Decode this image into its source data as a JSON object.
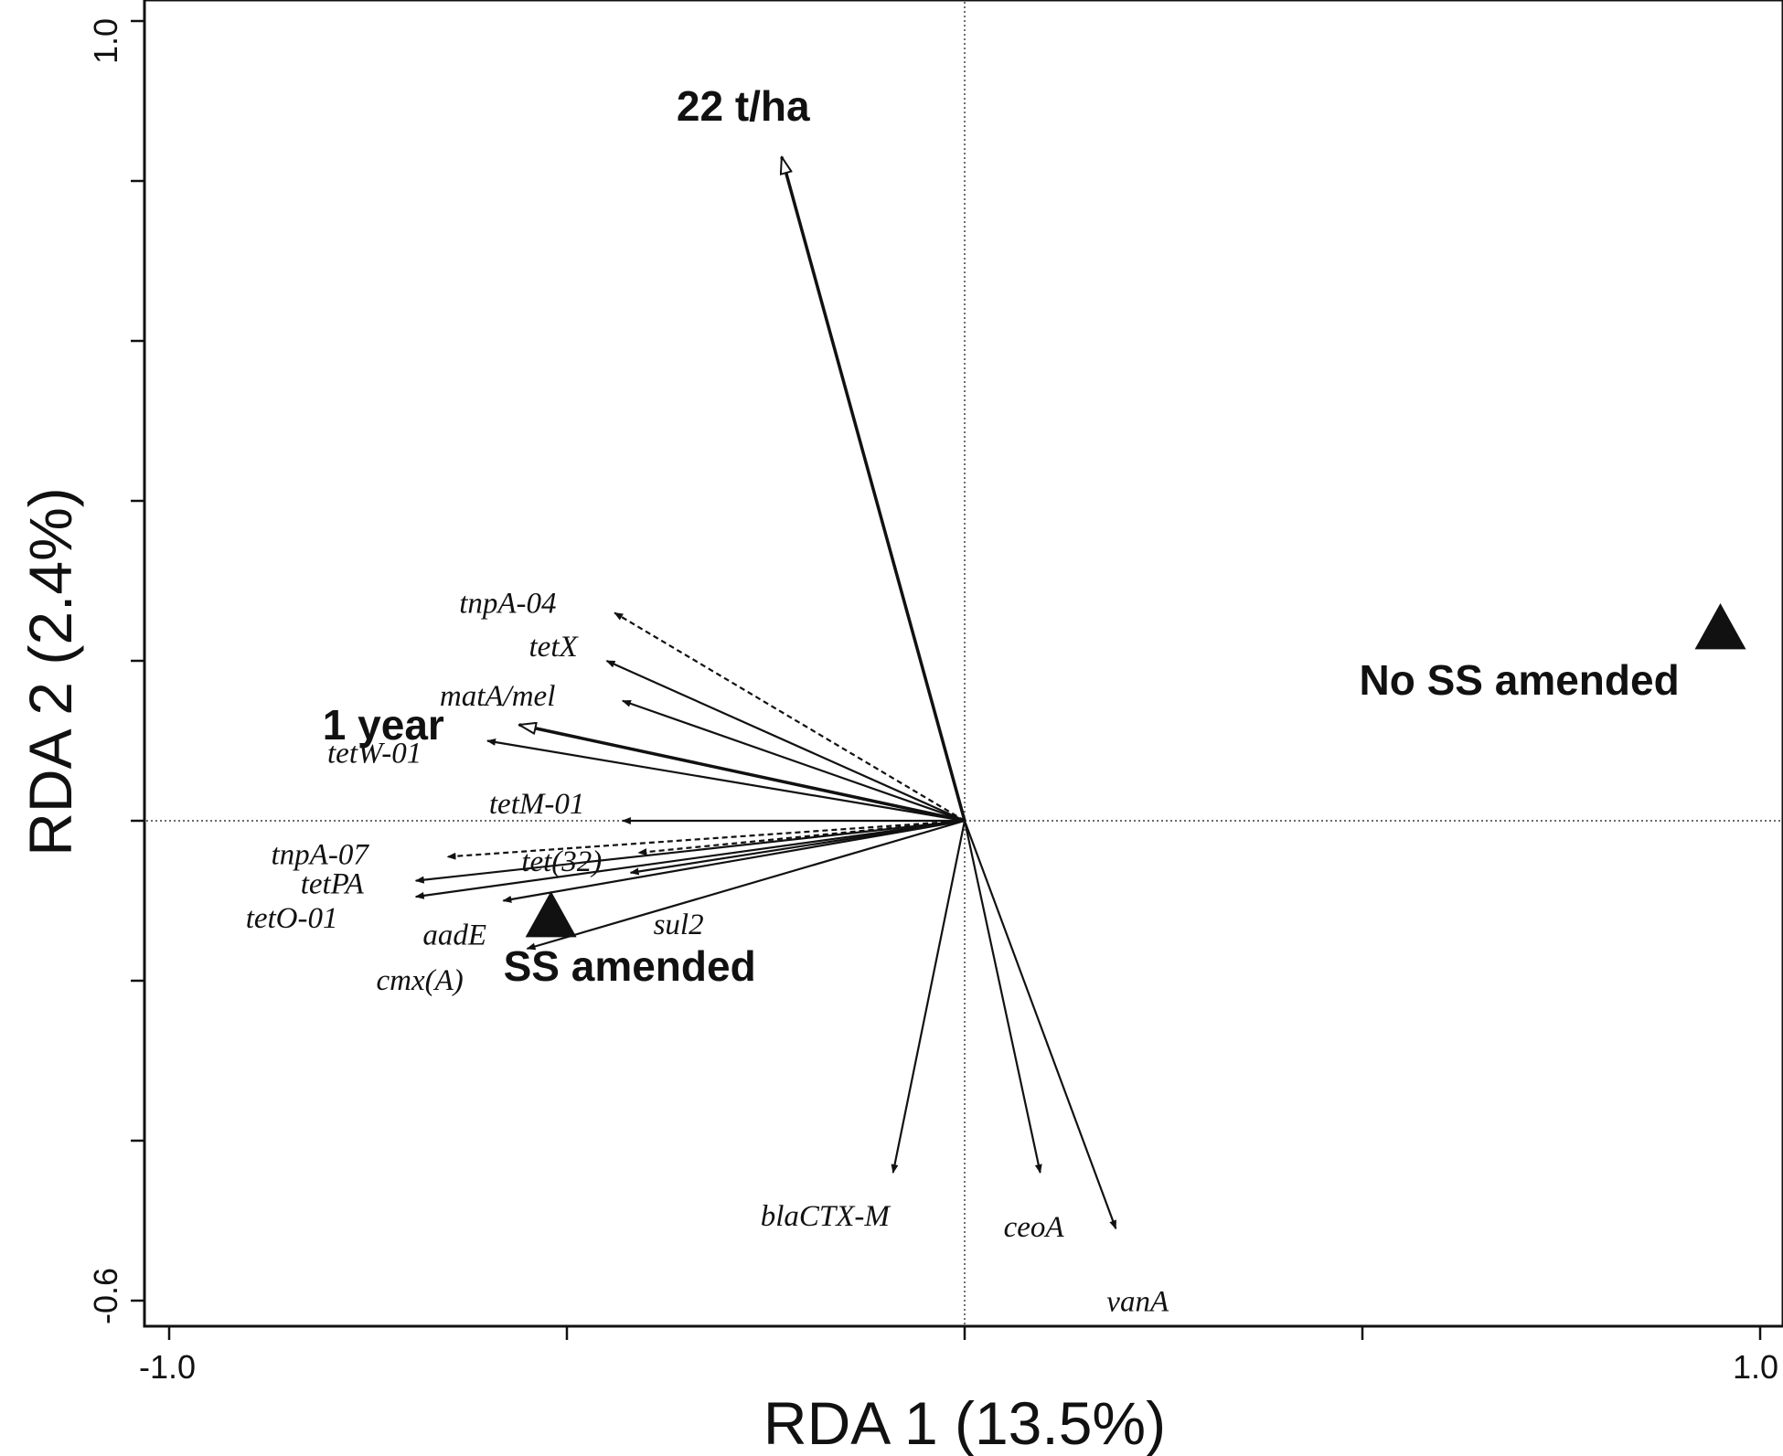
{
  "chart_data": {
    "type": "scatter",
    "subtype": "rda-biplot",
    "xlabel": "RDA 1 (13.5%)",
    "ylabel": "RDA 2 (2.4%)",
    "xlim": [
      -1.0,
      1.0
    ],
    "ylim": [
      -0.6,
      1.0
    ],
    "x_tick_labels": [
      "-1.0",
      "1.0"
    ],
    "y_tick_labels": [
      "1.0",
      "-0.6"
    ],
    "x_ticks": [
      -1.0,
      -0.5,
      0.0,
      0.5,
      1.0
    ],
    "y_ticks": [
      1.0,
      0.8,
      0.6,
      0.4,
      0.2,
      0.0,
      -0.2,
      -0.4,
      -0.6
    ],
    "reference_lines": {
      "x": 0.0,
      "y": 0.0
    },
    "gene_vectors": [
      {
        "label": "tnpA-04",
        "x": -0.44,
        "y": 0.26,
        "dashed": true
      },
      {
        "label": "tetX",
        "x": -0.45,
        "y": 0.2,
        "dashed": false
      },
      {
        "label": "matA/mel",
        "x": -0.43,
        "y": 0.15,
        "dashed": false
      },
      {
        "label": "tetW-01",
        "x": -0.6,
        "y": 0.1,
        "dashed": false
      },
      {
        "label": "tetM-01",
        "x": -0.43,
        "y": 0.0,
        "dashed": false
      },
      {
        "label": "tet(32)",
        "x": -0.41,
        "y": -0.04,
        "dashed": true
      },
      {
        "label": "tnpA-07",
        "x": -0.65,
        "y": -0.045,
        "dashed": true
      },
      {
        "label": "tetPA",
        "x": -0.69,
        "y": -0.075,
        "dashed": false
      },
      {
        "label": "tetO-01",
        "x": -0.69,
        "y": -0.095,
        "dashed": false
      },
      {
        "label": "sul2",
        "x": -0.42,
        "y": -0.065,
        "dashed": false
      },
      {
        "label": "aadE",
        "x": -0.58,
        "y": -0.1,
        "dashed": false
      },
      {
        "label": "cmx(A)",
        "x": -0.55,
        "y": -0.16,
        "dashed": false
      },
      {
        "label": "blaCTX-M",
        "x": -0.09,
        "y": -0.44,
        "dashed": false
      },
      {
        "label": "ceoA",
        "x": 0.095,
        "y": -0.44,
        "dashed": false
      },
      {
        "label": "vanA",
        "x": 0.19,
        "y": -0.51,
        "dashed": false
      }
    ],
    "environment_vectors": [
      {
        "label": "22 t/ha",
        "x": -0.23,
        "y": 0.83
      },
      {
        "label": "1 year",
        "x": -0.56,
        "y": 0.12
      }
    ],
    "sites": [
      {
        "label": "No SS amended",
        "x": 0.95,
        "y": 0.24
      },
      {
        "label": "SS amended",
        "x": -0.52,
        "y": -0.12
      }
    ]
  }
}
